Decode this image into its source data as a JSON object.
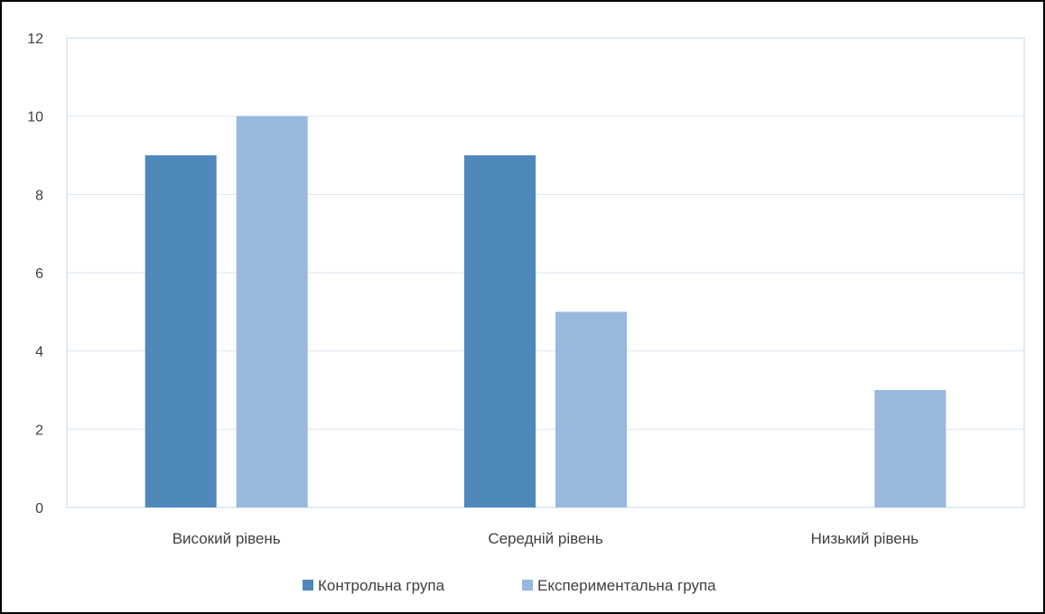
{
  "chart_data": {
    "type": "bar",
    "title": "",
    "xlabel": "",
    "ylabel": "",
    "categories": [
      "Високий рівень",
      "Середній рівень",
      "Низький рівень"
    ],
    "series": [
      {
        "name": "Контрольна група",
        "values": [
          9,
          9,
          0
        ]
      },
      {
        "name": "Експериментальна група",
        "values": [
          10,
          5,
          3
        ]
      }
    ],
    "ylim": [
      0,
      12
    ],
    "yticks": [
      0,
      2,
      4,
      6,
      8,
      10,
      12
    ],
    "grid": true,
    "legend": "bottom",
    "colors": {
      "series": [
        "#4f88bb",
        "#98b8de"
      ],
      "grid": "#d9e6f2",
      "frame": "#bfd8ec"
    }
  }
}
